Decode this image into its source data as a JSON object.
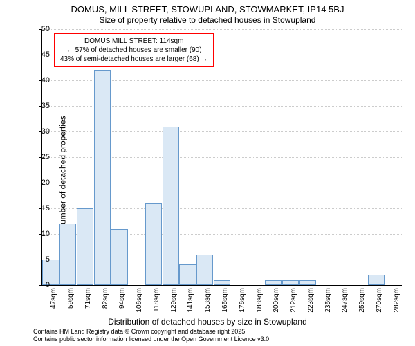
{
  "title_main": "DOMUS, MILL STREET, STOWUPLAND, STOWMARKET, IP14 5BJ",
  "title_sub": "Size of property relative to detached houses in Stowupland",
  "y_label": "Number of detached properties",
  "x_label": "Distribution of detached houses by size in Stowupland",
  "footer_line1": "Contains HM Land Registry data © Crown copyright and database right 2025.",
  "footer_line2": "Contains public sector information licensed under the Open Government Licence v3.0.",
  "chart": {
    "type": "histogram",
    "ylim": [
      0,
      50
    ],
    "ytick_step": 5,
    "bar_fill": "#dae8f5",
    "bar_border": "#6699cc",
    "grid_color": "#cccccc",
    "marker_color": "#ff0000",
    "background_color": "#ffffff",
    "categories": [
      "47sqm",
      "59sqm",
      "71sqm",
      "82sqm",
      "94sqm",
      "106sqm",
      "118sqm",
      "129sqm",
      "141sqm",
      "153sqm",
      "165sqm",
      "176sqm",
      "188sqm",
      "200sqm",
      "212sqm",
      "223sqm",
      "235sqm",
      "247sqm",
      "259sqm",
      "270sqm",
      "282sqm"
    ],
    "values": [
      5,
      12,
      15,
      42,
      11,
      0,
      16,
      31,
      4,
      6,
      1,
      0,
      0,
      1,
      1,
      1,
      0,
      0,
      0,
      2,
      0
    ],
    "marker_index": 5.8,
    "annotation": {
      "line1": "DOMUS MILL STREET: 114sqm",
      "line2": "← 57% of detached houses are smaller (90)",
      "line3": "43% of semi-detached houses are larger (68) →"
    }
  }
}
